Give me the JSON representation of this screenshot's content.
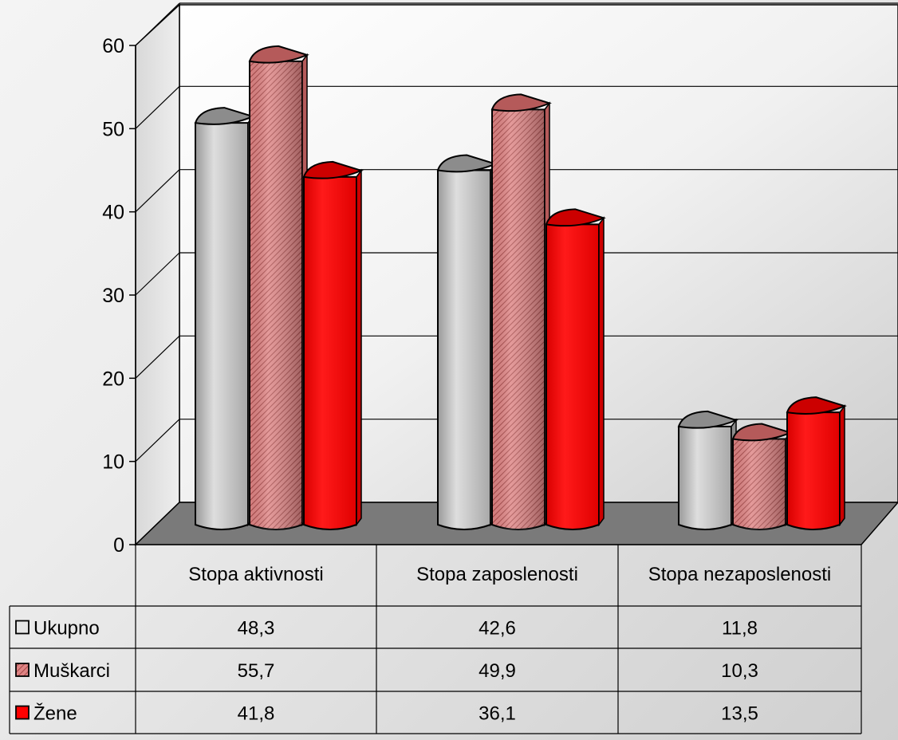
{
  "chart_data": {
    "type": "bar",
    "categories": [
      "Stopa aktivnosti",
      "Stopa zaposlenosti",
      "Stopa nezaposlenosti"
    ],
    "series": [
      {
        "name": "Ukupno",
        "values": [
          48.3,
          42.6,
          11.8
        ],
        "color": "#c0c0c0",
        "pattern": "plain"
      },
      {
        "name": "Muškarci",
        "values": [
          55.7,
          49.9,
          10.3
        ],
        "color": "#d97a7a",
        "pattern": "hatched"
      },
      {
        "name": "Žene",
        "values": [
          41.8,
          36.1,
          13.5
        ],
        "color": "#ff0000",
        "pattern": "plain"
      }
    ],
    "ylim": [
      0,
      60
    ],
    "yticks": [
      0,
      10,
      20,
      30,
      40,
      50,
      60
    ],
    "grid": true,
    "data_table": true,
    "table_values": [
      [
        "48,3",
        "42,6",
        "11,8"
      ],
      [
        "55,7",
        "49,9",
        "10,3"
      ],
      [
        "41,8",
        "36,1",
        "13,5"
      ]
    ],
    "floor_color": "#7a7a7a"
  }
}
